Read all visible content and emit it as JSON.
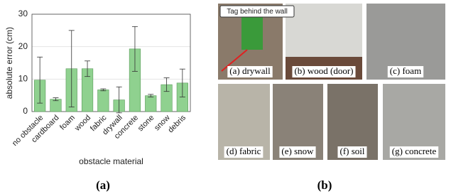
{
  "chart_data": {
    "type": "bar",
    "ylabel": "absolute error (cm)",
    "xlabel": "obstacle material",
    "categories": [
      "no obstacle",
      "cardboard",
      "foam",
      "wood",
      "fabric",
      "drywall",
      "concrete",
      "stone",
      "snow",
      "debris"
    ],
    "values": [
      9.7,
      3.8,
      13.2,
      13.2,
      6.7,
      3.6,
      19.3,
      4.9,
      8.3,
      8.8
    ],
    "errors": [
      7.1,
      0.45,
      11.8,
      2.4,
      0.3,
      4.0,
      6.9,
      0.4,
      2.1,
      4.3
    ],
    "color": "#8fd18f",
    "ylim": [
      0,
      30
    ],
    "yticks": [
      0,
      10,
      20,
      30
    ],
    "grid": true
  },
  "figure_labels": [
    "(a)",
    "(b)"
  ],
  "photos": {
    "callout": "Tag behind the wall",
    "captions": [
      "(a) drywall",
      "(b) wood (door)",
      "(c) foam",
      "(d) fabric",
      "(e) snow",
      "(f) soil",
      "(g) concrete"
    ]
  }
}
